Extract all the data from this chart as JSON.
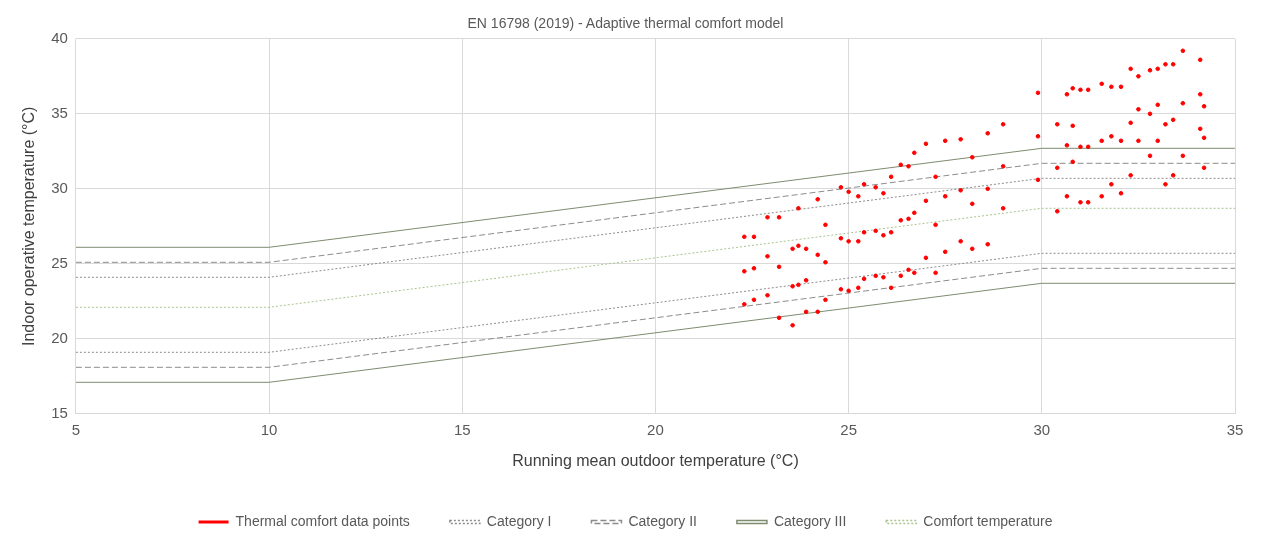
{
  "chart_data": {
    "type": "scatter",
    "title": "EN 16798 (2019) - Adaptive thermal comfort model",
    "xlabel": "Running mean outdoor temperature (°C)",
    "ylabel": "Indoor operative temperature (°C)",
    "xlim": [
      5,
      35
    ],
    "xticks": [
      5,
      10,
      15,
      20,
      25,
      30,
      35
    ],
    "ylim": [
      15,
      40
    ],
    "yticks": [
      15,
      20,
      25,
      30,
      35,
      40
    ],
    "grid": true,
    "legend": "bottom",
    "series": [
      {
        "name": "Thermal comfort data points",
        "type": "scatter",
        "marker": "circle",
        "color": "#ff0000",
        "x": [
          22.3,
          22.3,
          22.3,
          22.55,
          22.55,
          22.55,
          22.9,
          22.9,
          22.9,
          23.2,
          23.2,
          23.2,
          23.55,
          23.55,
          23.55,
          23.7,
          23.7,
          23.7,
          23.9,
          23.9,
          23.9,
          24.2,
          24.2,
          24.2,
          24.4,
          24.4,
          24.4,
          24.8,
          24.8,
          24.8,
          25.0,
          25.0,
          25.0,
          25.25,
          25.25,
          25.25,
          25.4,
          25.4,
          25.4,
          25.7,
          25.7,
          25.7,
          25.9,
          25.9,
          25.9,
          26.1,
          26.1,
          26.1,
          26.35,
          26.35,
          26.35,
          26.55,
          26.55,
          26.55,
          26.7,
          26.7,
          26.7,
          27.0,
          27.0,
          27.0,
          27.25,
          27.25,
          27.25,
          27.5,
          27.5,
          27.5,
          27.9,
          27.9,
          27.9,
          28.2,
          28.2,
          28.2,
          28.6,
          28.6,
          28.6,
          29.0,
          29.0,
          29.0,
          29.9,
          29.9,
          29.9,
          30.4,
          30.4,
          30.4,
          30.65,
          30.65,
          30.65,
          30.8,
          30.8,
          30.8,
          31.0,
          31.0,
          31.0,
          31.2,
          31.2,
          31.2,
          31.55,
          31.55,
          31.55,
          31.8,
          31.8,
          31.8,
          32.05,
          32.05,
          32.05,
          32.3,
          32.3,
          32.3,
          32.5,
          32.5,
          32.5,
          32.8,
          32.8,
          32.8,
          33.0,
          33.0,
          33.0,
          33.2,
          33.2,
          33.2,
          33.4,
          33.4,
          33.4,
          33.65,
          33.65,
          33.65,
          34.1,
          34.1,
          34.1,
          34.2,
          34.2,
          34.2
        ],
        "values": [
          26.8,
          24.5,
          22.3,
          26.8,
          24.7,
          22.6,
          28.1,
          25.5,
          22.9,
          28.1,
          24.8,
          21.4,
          26.0,
          23.5,
          20.9,
          28.7,
          26.2,
          23.6,
          26.0,
          23.9,
          21.8,
          29.3,
          25.6,
          21.8,
          27.6,
          25.1,
          22.6,
          30.1,
          26.7,
          23.3,
          29.8,
          26.5,
          23.2,
          29.5,
          26.5,
          23.4,
          30.3,
          27.1,
          24.0,
          30.1,
          27.2,
          24.2,
          29.7,
          26.9,
          24.1,
          30.8,
          27.1,
          23.4,
          31.6,
          27.9,
          24.2,
          31.5,
          28.0,
          24.6,
          32.4,
          28.4,
          24.4,
          33.0,
          29.2,
          25.4,
          30.8,
          27.6,
          24.4,
          33.2,
          29.5,
          25.8,
          33.3,
          29.9,
          26.5,
          32.1,
          29.0,
          26.0,
          33.7,
          30.0,
          26.3,
          34.3,
          31.5,
          28.7,
          36.4,
          33.5,
          30.6,
          34.3,
          31.4,
          28.5,
          36.3,
          32.9,
          29.5,
          36.7,
          34.2,
          31.8,
          36.6,
          32.8,
          29.1,
          36.6,
          32.8,
          29.1,
          37.0,
          33.2,
          29.5,
          36.8,
          33.5,
          30.3,
          36.8,
          33.2,
          29.7,
          38.0,
          34.4,
          30.9,
          37.5,
          35.3,
          33.2,
          37.9,
          35.0,
          32.2,
          38.0,
          35.6,
          33.2,
          38.3,
          34.3,
          30.3,
          38.3,
          34.6,
          30.9,
          39.2,
          35.7,
          32.2,
          38.6,
          36.3,
          34.0,
          35.5,
          33.4,
          31.4
        ]
      },
      {
        "name": "Category I",
        "type": "line",
        "line_style": "dotted",
        "color": "#8c8c8c",
        "x": [
          5,
          10,
          30,
          35
        ],
        "values": [
          24.1,
          24.1,
          30.7,
          30.7
        ]
      },
      {
        "type": "line",
        "line_style": "dotted",
        "color": "#8c8c8c",
        "x": [
          5,
          10,
          30,
          35
        ],
        "values": [
          19.1,
          19.1,
          25.7,
          25.7
        ]
      },
      {
        "name": "Category II",
        "type": "line",
        "line_style": "dashed",
        "color": "#8c8c8c",
        "x": [
          5,
          10,
          30,
          35
        ],
        "values": [
          25.1,
          25.1,
          31.7,
          31.7
        ]
      },
      {
        "type": "line",
        "line_style": "dashed",
        "color": "#8c8c8c",
        "x": [
          5,
          10,
          30,
          35
        ],
        "values": [
          18.1,
          18.1,
          24.7,
          24.7
        ]
      },
      {
        "name": "Category III",
        "type": "line",
        "line_style": "solid",
        "color": "#7e8c70",
        "x": [
          5,
          10,
          30,
          35
        ],
        "values": [
          26.1,
          26.1,
          32.7,
          32.7
        ]
      },
      {
        "type": "line",
        "line_style": "solid",
        "color": "#7e8c70",
        "x": [
          5,
          10,
          30,
          35
        ],
        "values": [
          17.1,
          17.1,
          23.7,
          23.7
        ]
      },
      {
        "name": "Comfort temperature",
        "type": "line",
        "line_style": "dotted",
        "color": "#a9c48f",
        "x": [
          5,
          10,
          30,
          35
        ],
        "values": [
          22.1,
          22.1,
          28.7,
          28.7
        ]
      }
    ]
  }
}
